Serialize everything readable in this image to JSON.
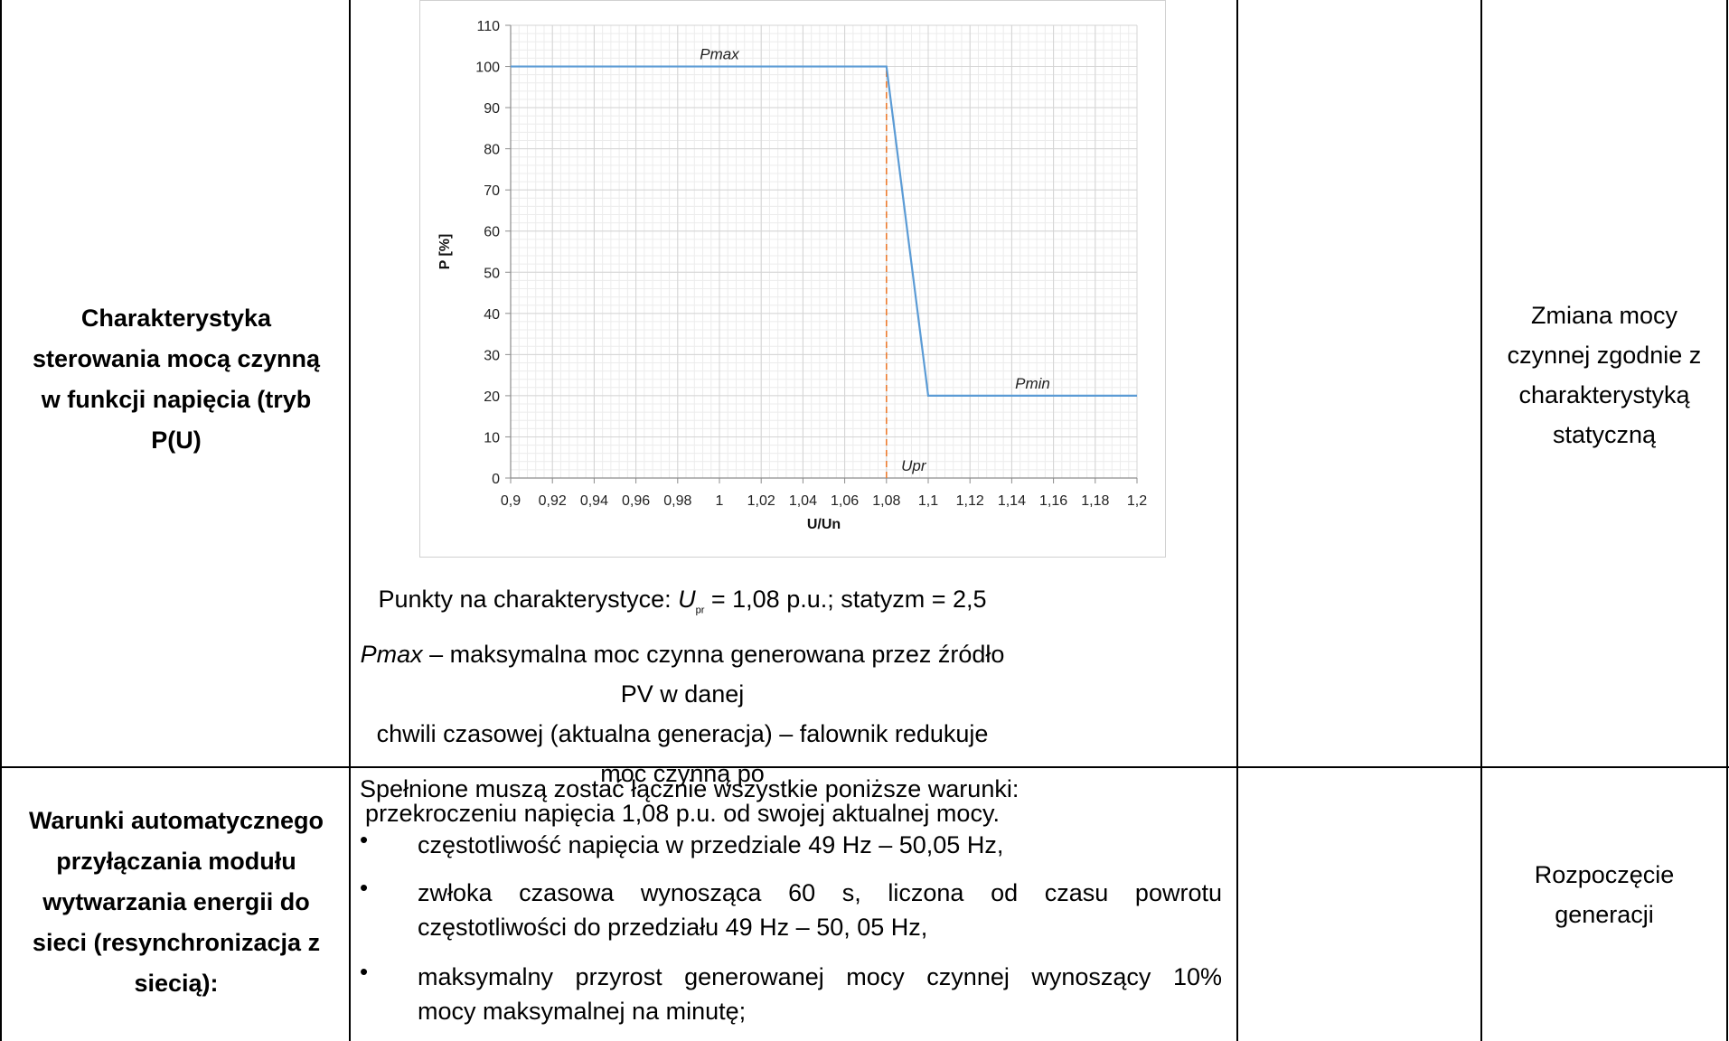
{
  "rows": [
    {
      "label": "Charakterystyka sterowania mocą czynną w funkcji napięcia (tryb P(U)",
      "points_prefix": "Punkty na charakterystyce: ",
      "points_symbol": "U",
      "points_sub": "pr",
      "points_suffix": " = 1,08 p.u.;   statyzm = 2,5",
      "pmax_term": "Pmax",
      "pmax_desc_1": " – maksymalna moc czynna generowana przez źródło PV w danej",
      "pmax_desc_2": "chwili czasowej (aktualna generacja) – falownik redukuje moc czynną po",
      "pmax_desc_3": "przekroczeniu napięcia 1,08 p.u. od swojej aktualnej mocy.",
      "result": "Zmiana mocy czynnej zgodnie z charakterystyką statyczną"
    },
    {
      "label": "Warunki automatycznego przyłączania modułu wytwarzania energii do sieci (resynchronizacja z siecią):",
      "intro": "Spełnione muszą zostać łącznie wszystkie poniższe warunki:",
      "bullet_1": "częstotliwość napięcia w przedziale 49 Hz – 50,05 Hz,",
      "bullet_2_line1": "zwłoka czasowa wynosząca 60 s, liczona od czasu powrotu",
      "bullet_2_line2": "częstotliwości do przedziału 49 Hz – 50, 05 Hz,",
      "bullet_3_line1": "maksymalny przyrost generowanej mocy czynnej wynoszący 10%",
      "bullet_3_line2": "mocy maksymalnej na minutę;",
      "bullet_symbol": "•",
      "result": "Rozpoczęcie generacji"
    }
  ],
  "chart_data": {
    "type": "line",
    "title": "",
    "xlabel": "U/Un",
    "ylabel": "P [%]",
    "xlim": [
      0.9,
      1.2
    ],
    "ylim": [
      0,
      110
    ],
    "x_ticks": [
      "0,9",
      "0,92",
      "0,94",
      "0,96",
      "0,98",
      "1",
      "1,02",
      "1,04",
      "1,06",
      "1,08",
      "1,1",
      "1,12",
      "1,14",
      "1,16",
      "1,18",
      "1,2"
    ],
    "x_tick_values": [
      0.9,
      0.92,
      0.94,
      0.96,
      0.98,
      1.0,
      1.02,
      1.04,
      1.06,
      1.08,
      1.1,
      1.12,
      1.14,
      1.16,
      1.18,
      1.2
    ],
    "y_ticks": [
      "0",
      "10",
      "20",
      "30",
      "40",
      "50",
      "60",
      "70",
      "80",
      "90",
      "100",
      "110"
    ],
    "y_tick_values": [
      0,
      10,
      20,
      30,
      40,
      50,
      60,
      70,
      80,
      90,
      100,
      110
    ],
    "grid": true,
    "series": [
      {
        "x": [
          0.9,
          1.08,
          1.1,
          1.2
        ],
        "y": [
          100,
          100,
          20,
          20
        ],
        "color": "#5b9bd5"
      }
    ],
    "vline": {
      "x": 1.08,
      "y": [
        0,
        100
      ],
      "color": "#ed7d31",
      "dashed": true
    },
    "annotations": [
      {
        "text": "Pmax",
        "x": 1.0,
        "y": 100
      },
      {
        "text": "Pmin",
        "x": 1.15,
        "y": 20
      },
      {
        "text": "Upr",
        "x": 1.093,
        "y": 0
      }
    ]
  }
}
